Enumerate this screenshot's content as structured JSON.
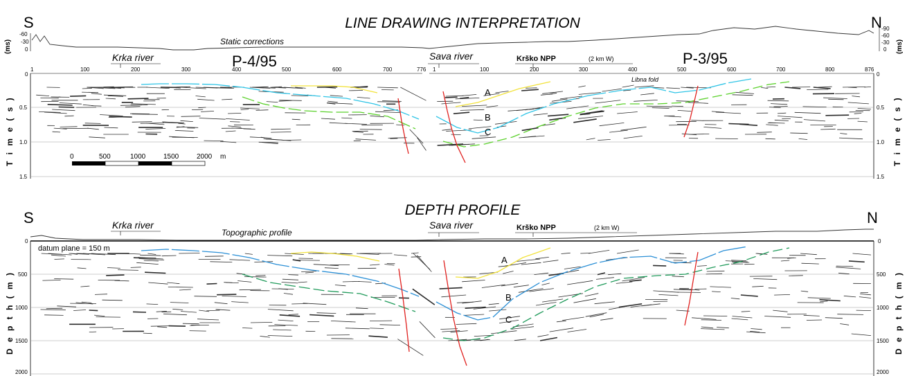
{
  "top": {
    "title": "LINE DRAWING INTERPRETATION",
    "south": "S",
    "north": "N",
    "static_corrections": "Static corrections",
    "ms_left": "(ms)",
    "ms_right": "(ms)",
    "ms_ticks_left": [
      "-60",
      "-30",
      "0"
    ],
    "ms_ticks_right": [
      "-90",
      "-60",
      "-30",
      "0"
    ],
    "krka": "Krka river",
    "sava": "Sava river",
    "krsko": "Krško NPP",
    "krsko_note": "(2  km W)",
    "line1": "P-4/95",
    "line2": "P-3/95",
    "libna": "Libna fold",
    "cdp1": [
      "1",
      "100",
      "200",
      "300",
      "400",
      "500",
      "600",
      "700",
      "776"
    ],
    "cdp2": [
      "1",
      "100",
      "200",
      "300",
      "400",
      "500",
      "600",
      "700",
      "800",
      "876"
    ],
    "ylabel": "T i m e   ( s )",
    "yticks": [
      "0",
      "0.5",
      "1.0",
      "1.5"
    ],
    "horizons": [
      "A",
      "B",
      "C"
    ],
    "scalebar": [
      "0",
      "500",
      "1000",
      "1500",
      "2000",
      "m"
    ]
  },
  "bottom": {
    "title": "DEPTH PROFILE",
    "south": "S",
    "north": "N",
    "krka": "Krka river",
    "topo": "Topographic profile",
    "sava": "Sava river",
    "krsko": "Krško NPP",
    "krsko_note": "(2  km W)",
    "datum": "datum plane = 150 m",
    "ylabel": "D e p t h   ( m )",
    "yticks": [
      "0",
      "500",
      "1000",
      "1500",
      "2000"
    ],
    "horizons": [
      "A",
      "B",
      "C"
    ]
  },
  "colors": {
    "yellow": "#f2e23a",
    "cyan": "#2ec4e6",
    "green": "#5ad12a",
    "darkgreen": "#1f9a5a",
    "blue": "#2a8fd6",
    "red": "#e0201e"
  }
}
